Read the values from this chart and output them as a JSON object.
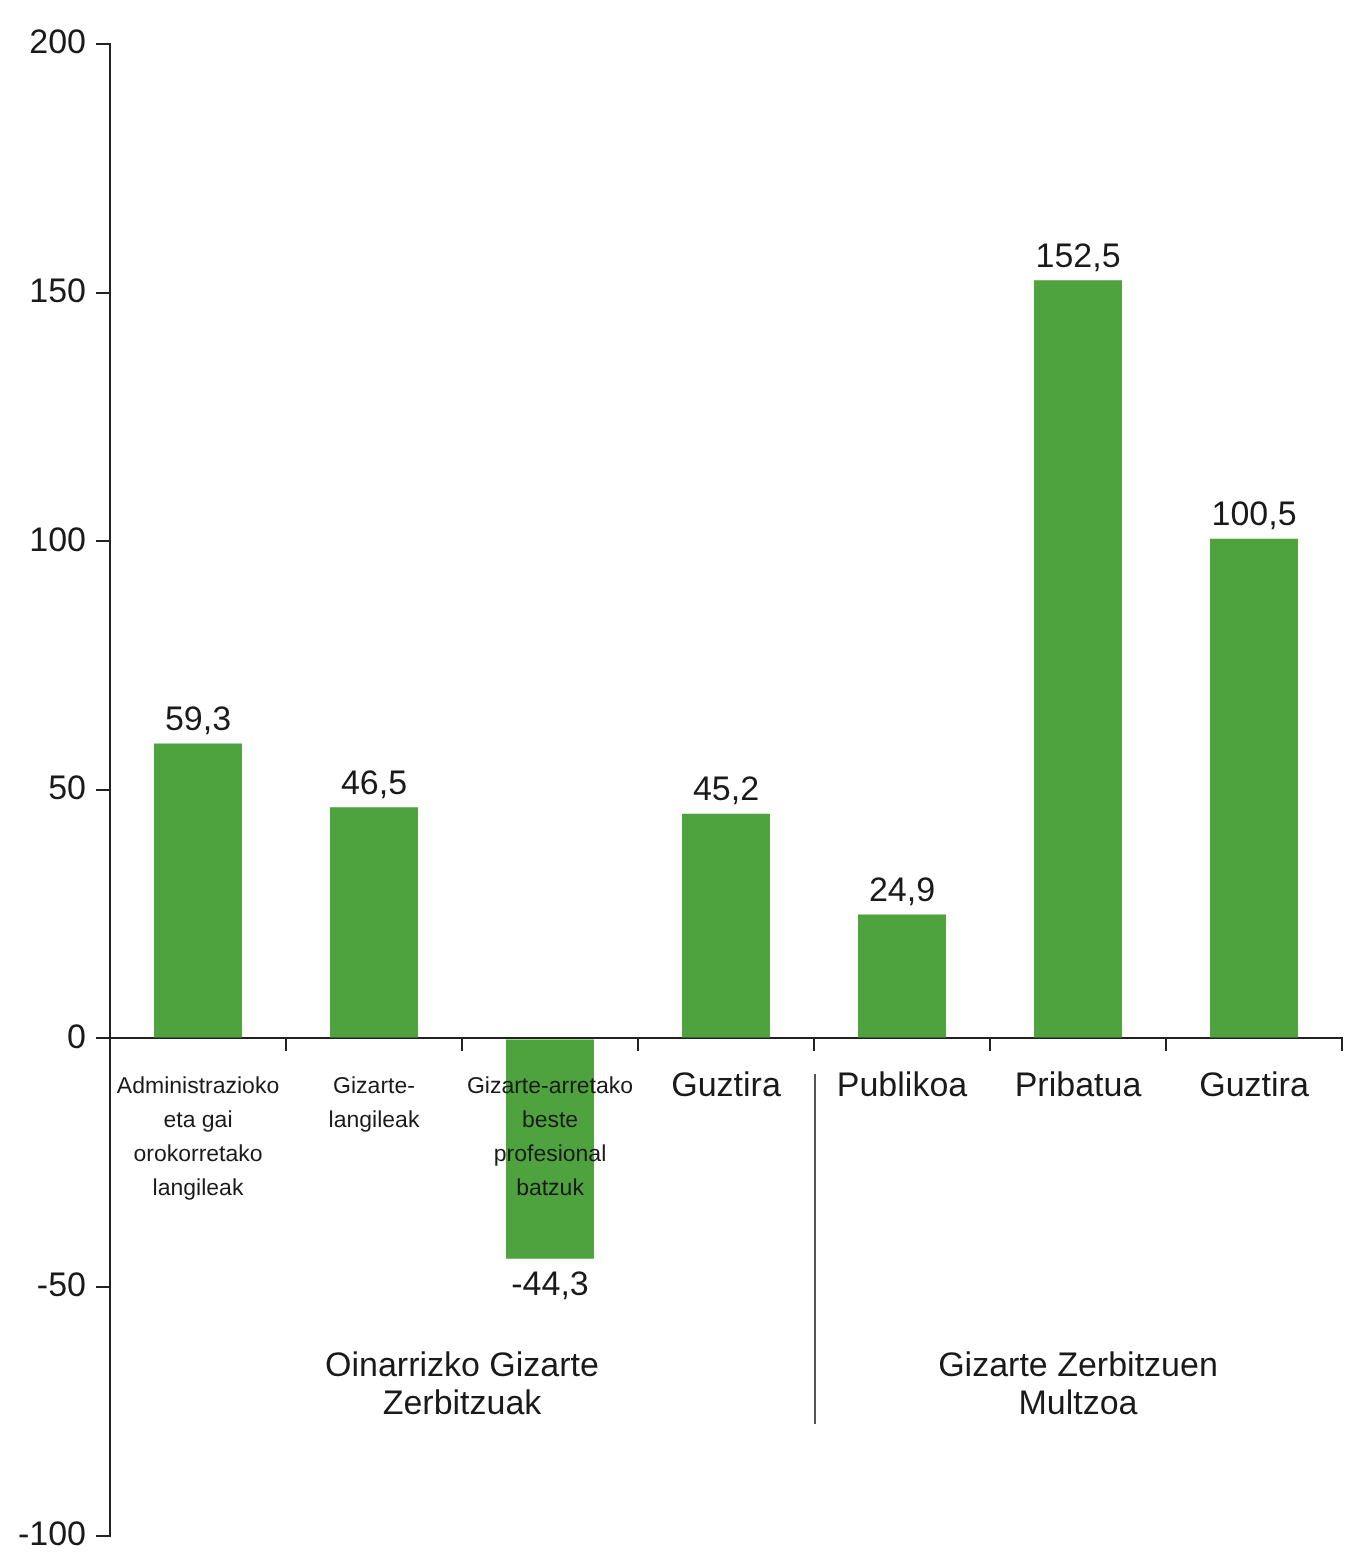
{
  "chart_data": {
    "type": "bar",
    "categories": [
      "Administrazioko eta gai orokorretako langileak",
      "Gizarte-langileak",
      "Gizarte-arretako beste profesional batzuk",
      "Guztira",
      "Publikoa",
      "Pribatua",
      "Guztira"
    ],
    "values": [
      59.3,
      46.5,
      -44.3,
      45.2,
      24.9,
      152.5,
      100.5
    ],
    "color": "#4ea33e",
    "value_labels": [
      "59,3",
      "46,5",
      "-44,3",
      "45,2",
      "24,9",
      "152,5",
      "100,5"
    ],
    "ylim": [
      -100,
      200
    ],
    "yticks": [
      -100,
      -50,
      0,
      50,
      100,
      150,
      200
    ],
    "grid": false,
    "legend": false,
    "annotations": [
      "Oinarrizko Gizarte Zerbitzuak",
      "Gizarte Zerbitzuen Multzoa"
    ]
  }
}
